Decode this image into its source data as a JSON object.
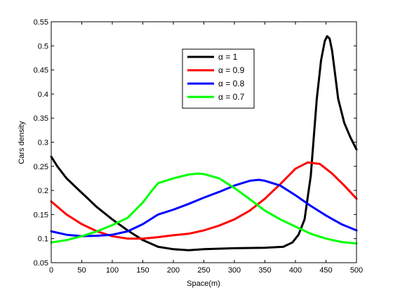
{
  "chart_data": {
    "type": "line",
    "title": "",
    "xlabel": "Space(m)",
    "ylabel": "Cars density",
    "xlim": [
      0,
      500
    ],
    "ylim": [
      0.05,
      0.55
    ],
    "xticks": [
      0,
      50,
      100,
      150,
      200,
      250,
      300,
      350,
      400,
      450,
      500
    ],
    "yticks": [
      0.05,
      0.1,
      0.15,
      0.2,
      0.25,
      0.3,
      0.35,
      0.4,
      0.45,
      0.5,
      0.55
    ],
    "ytick_labels": [
      "0.05",
      "0.1",
      "0.15",
      "0.2",
      "0.25",
      "0.3",
      "0.35",
      "0.4",
      "0.45",
      "0.5",
      "0.55"
    ],
    "grid": false,
    "legend_position": "top-center",
    "series": [
      {
        "name": "α = 1",
        "color": "#000000",
        "x": [
          0,
          10,
          25,
          50,
          75,
          100,
          125,
          150,
          175,
          200,
          225,
          250,
          300,
          350,
          380,
          395,
          405,
          415,
          425,
          435,
          442,
          448,
          452,
          456,
          460,
          465,
          470,
          480,
          490,
          500
        ],
        "y": [
          0.27,
          0.25,
          0.225,
          0.195,
          0.165,
          0.14,
          0.117,
          0.097,
          0.083,
          0.078,
          0.076,
          0.078,
          0.08,
          0.081,
          0.083,
          0.092,
          0.108,
          0.14,
          0.23,
          0.39,
          0.47,
          0.51,
          0.52,
          0.515,
          0.49,
          0.44,
          0.39,
          0.34,
          0.31,
          0.285
        ]
      },
      {
        "name": "α = 0.9",
        "color": "#ff0000",
        "x": [
          0,
          25,
          50,
          75,
          100,
          125,
          150,
          175,
          200,
          225,
          250,
          275,
          300,
          325,
          350,
          375,
          400,
          420,
          440,
          460,
          480,
          500
        ],
        "y": [
          0.177,
          0.15,
          0.13,
          0.115,
          0.105,
          0.1,
          0.1,
          0.103,
          0.107,
          0.11,
          0.117,
          0.127,
          0.14,
          0.158,
          0.183,
          0.213,
          0.245,
          0.258,
          0.255,
          0.235,
          0.21,
          0.183
        ]
      },
      {
        "name": "α = 0.8",
        "color": "#0000ff",
        "x": [
          0,
          25,
          50,
          75,
          100,
          125,
          150,
          175,
          200,
          225,
          250,
          275,
          300,
          325,
          340,
          350,
          375,
          400,
          425,
          450,
          475,
          500
        ],
        "y": [
          0.115,
          0.108,
          0.105,
          0.106,
          0.108,
          0.115,
          0.13,
          0.15,
          0.16,
          0.172,
          0.185,
          0.197,
          0.21,
          0.22,
          0.222,
          0.22,
          0.21,
          0.19,
          0.168,
          0.148,
          0.13,
          0.117
        ]
      },
      {
        "name": "α = 0.7",
        "color": "#00ff00",
        "x": [
          0,
          25,
          50,
          75,
          100,
          125,
          150,
          165,
          175,
          200,
          225,
          240,
          250,
          275,
          300,
          325,
          350,
          375,
          400,
          425,
          450,
          475,
          500
        ],
        "y": [
          0.092,
          0.097,
          0.105,
          0.115,
          0.128,
          0.143,
          0.175,
          0.2,
          0.215,
          0.225,
          0.233,
          0.235,
          0.234,
          0.225,
          0.205,
          0.182,
          0.158,
          0.14,
          0.125,
          0.11,
          0.1,
          0.093,
          0.09
        ]
      }
    ]
  }
}
